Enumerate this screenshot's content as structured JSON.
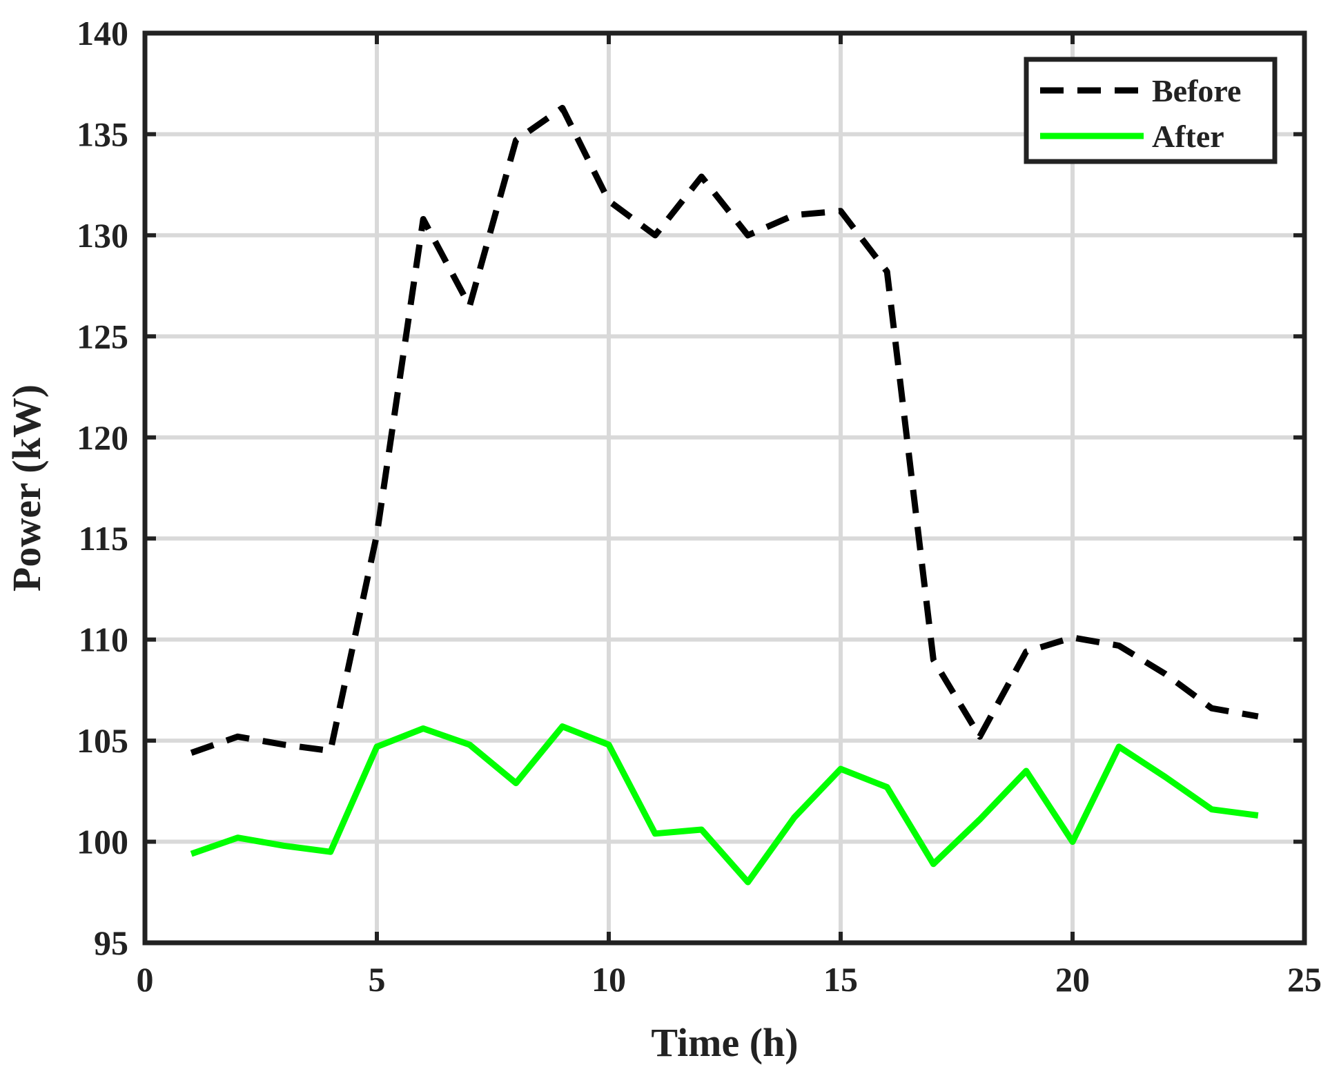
{
  "chart_data": {
    "type": "line",
    "title": "",
    "xlabel": "Time (h)",
    "ylabel": "Power (kW)",
    "xlim": [
      0,
      25
    ],
    "ylim": [
      95,
      140
    ],
    "xticks": [
      "0",
      "5",
      "10",
      "15",
      "20",
      "25"
    ],
    "yticks": [
      "95",
      "100",
      "105",
      "110",
      "115",
      "120",
      "125",
      "130",
      "135",
      "140"
    ],
    "grid": true,
    "legend_position": "top-right",
    "x": [
      1,
      2,
      3,
      4,
      5,
      6,
      7,
      8,
      9,
      10,
      11,
      12,
      13,
      14,
      15,
      16,
      17,
      18,
      19,
      20,
      21,
      22,
      23,
      24
    ],
    "series": [
      {
        "name": "Before",
        "style": "dashed",
        "color": "#000000",
        "values": [
          104.4,
          105.2,
          104.8,
          104.5,
          115.2,
          130.8,
          126.5,
          134.7,
          136.3,
          131.7,
          130.0,
          132.9,
          130.0,
          131.0,
          131.2,
          128.2,
          109.0,
          105.2,
          109.4,
          110.1,
          109.7,
          108.3,
          106.6,
          106.2
        ]
      },
      {
        "name": "After",
        "style": "solid",
        "color": "#00ff00",
        "values": [
          99.4,
          100.2,
          99.8,
          99.5,
          104.7,
          105.6,
          104.8,
          102.9,
          105.7,
          104.8,
          100.4,
          100.6,
          98.0,
          101.2,
          103.6,
          102.7,
          98.9,
          101.1,
          103.5,
          100.0,
          104.7,
          103.2,
          101.6,
          101.3
        ]
      }
    ]
  },
  "colors": {
    "axis": "#222222",
    "grid": "#d9d9d9"
  }
}
